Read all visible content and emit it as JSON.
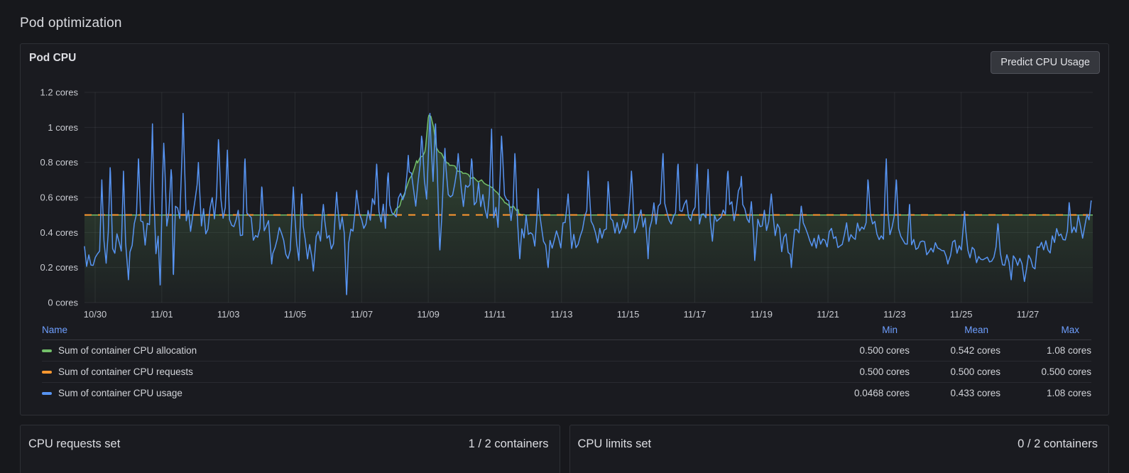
{
  "page": {
    "title": "Pod optimization"
  },
  "pod_cpu_panel": {
    "title": "Pod CPU",
    "predict_button_label": "Predict CPU Usage"
  },
  "chart_data": {
    "type": "line",
    "title": "Pod CPU",
    "unit": "cores",
    "grid": true,
    "legend_position": "bottom-table",
    "ylim": [
      0,
      1.2
    ],
    "x_domain_days": [
      -0.32,
      29.95
    ],
    "y_ticks": [
      {
        "value": 0,
        "label": "0 cores"
      },
      {
        "value": 0.2,
        "label": "0.2 cores"
      },
      {
        "value": 0.4,
        "label": "0.4 cores"
      },
      {
        "value": 0.6,
        "label": "0.6 cores"
      },
      {
        "value": 0.8,
        "label": "0.8 cores"
      },
      {
        "value": 1,
        "label": "1 cores"
      },
      {
        "value": 1.2,
        "label": "1.2 cores"
      }
    ],
    "x_ticks": [
      {
        "day": 0,
        "label": "10/30"
      },
      {
        "day": 2,
        "label": "11/01"
      },
      {
        "day": 4,
        "label": "11/03"
      },
      {
        "day": 6,
        "label": "11/05"
      },
      {
        "day": 8,
        "label": "11/07"
      },
      {
        "day": 10,
        "label": "11/09"
      },
      {
        "day": 12,
        "label": "11/11"
      },
      {
        "day": 14,
        "label": "11/13"
      },
      {
        "day": 16,
        "label": "11/15"
      },
      {
        "day": 18,
        "label": "11/17"
      },
      {
        "day": 20,
        "label": "11/19"
      },
      {
        "day": 22,
        "label": "11/21"
      },
      {
        "day": 24,
        "label": "11/23"
      },
      {
        "day": 26,
        "label": "11/25"
      },
      {
        "day": 28,
        "label": "11/27"
      }
    ],
    "legend_columns": [
      "Name",
      "Min",
      "Mean",
      "Max"
    ],
    "series": [
      {
        "name": "Sum of container CPU allocation",
        "color": "#73BF69",
        "style": "area",
        "base": 0.5,
        "noise": 0.012,
        "seed": 7,
        "points": [
          [
            -0.32,
            0.5
          ],
          [
            8.9,
            0.5
          ],
          [
            9.15,
            0.56
          ],
          [
            9.4,
            0.68
          ],
          [
            9.65,
            0.8
          ],
          [
            9.9,
            0.86
          ],
          [
            10.02,
            1.08
          ],
          [
            10.12,
            1.04
          ],
          [
            10.25,
            0.88
          ],
          [
            10.6,
            0.8
          ],
          [
            11.0,
            0.74
          ],
          [
            11.5,
            0.7
          ],
          [
            11.9,
            0.66
          ],
          [
            12.3,
            0.58
          ],
          [
            12.7,
            0.52
          ],
          [
            12.9,
            0.5
          ],
          [
            29.95,
            0.5
          ]
        ],
        "stats": {
          "min": "0.500 cores",
          "mean": "0.542 cores",
          "max": "1.08 cores"
        }
      },
      {
        "name": "Sum of container CPU requests",
        "color": "#FF9830",
        "style": "dashed",
        "value": 0.5,
        "stats": {
          "min": "0.500 cores",
          "mean": "0.500 cores",
          "max": "0.500 cores"
        }
      },
      {
        "name": "Sum of container CPU usage",
        "color": "#5794F2",
        "style": "line",
        "seed": 1337,
        "step": 0.065,
        "clamp": [
          0.045,
          1.082
        ],
        "envelope": [
          [
            -0.32,
            0.32
          ],
          [
            0.5,
            0.3
          ],
          [
            1.2,
            0.35
          ],
          [
            2.2,
            0.42
          ],
          [
            3.2,
            0.5
          ],
          [
            4,
            0.48
          ],
          [
            4.8,
            0.42
          ],
          [
            5.6,
            0.35
          ],
          [
            6.5,
            0.3
          ],
          [
            7.2,
            0.38
          ],
          [
            7.9,
            0.45
          ],
          [
            8.8,
            0.52
          ],
          [
            9.5,
            0.6
          ],
          [
            10.1,
            0.68
          ],
          [
            10.8,
            0.64
          ],
          [
            11.6,
            0.6
          ],
          [
            12.3,
            0.52
          ],
          [
            13,
            0.42
          ],
          [
            13.8,
            0.36
          ],
          [
            14.6,
            0.4
          ],
          [
            15.3,
            0.38
          ],
          [
            16.2,
            0.45
          ],
          [
            17,
            0.52
          ],
          [
            17.8,
            0.5
          ],
          [
            18.6,
            0.48
          ],
          [
            19.3,
            0.5
          ],
          [
            20,
            0.44
          ],
          [
            20.8,
            0.38
          ],
          [
            21.6,
            0.34
          ],
          [
            22.4,
            0.38
          ],
          [
            23.2,
            0.4
          ],
          [
            24,
            0.38
          ],
          [
            24.6,
            0.33
          ],
          [
            25.4,
            0.3
          ],
          [
            26.2,
            0.28
          ],
          [
            26.8,
            0.24
          ],
          [
            27.6,
            0.22
          ],
          [
            28.2,
            0.24
          ],
          [
            28.8,
            0.33
          ],
          [
            29.4,
            0.42
          ],
          [
            29.95,
            0.46
          ]
        ],
        "amplitude": [
          [
            -0.32,
            0.09
          ],
          [
            2,
            0.13
          ],
          [
            4,
            0.12
          ],
          [
            6,
            0.09
          ],
          [
            8,
            0.1
          ],
          [
            10,
            0.13
          ],
          [
            12,
            0.12
          ],
          [
            14,
            0.09
          ],
          [
            16,
            0.11
          ],
          [
            18,
            0.12
          ],
          [
            20,
            0.09
          ],
          [
            22,
            0.08
          ],
          [
            24,
            0.08
          ],
          [
            26,
            0.06
          ],
          [
            27.5,
            0.05
          ],
          [
            29,
            0.09
          ],
          [
            29.95,
            0.08
          ]
        ],
        "spikes": [
          [
            0.2,
            0.7
          ],
          [
            0.45,
            0.77
          ],
          [
            0.85,
            0.75
          ],
          [
            1.3,
            0.82
          ],
          [
            1.72,
            1.02
          ],
          [
            2.06,
            0.91
          ],
          [
            2.3,
            0.86
          ],
          [
            2.64,
            1.08
          ],
          [
            3.1,
            0.8
          ],
          [
            3.7,
            0.93
          ],
          [
            3.97,
            0.87
          ],
          [
            4.5,
            0.82
          ],
          [
            5,
            0.66
          ],
          [
            5.95,
            0.66
          ],
          [
            6.2,
            0.62
          ],
          [
            6.85,
            0.56
          ],
          [
            7.25,
            0.63
          ],
          [
            7.85,
            0.64
          ],
          [
            8.45,
            0.79
          ],
          [
            8.8,
            0.74
          ],
          [
            9.4,
            0.84
          ],
          [
            9.8,
            0.95
          ],
          [
            10.05,
            1.08
          ],
          [
            10.22,
            1.02
          ],
          [
            10.5,
            0.88
          ],
          [
            10.9,
            0.85
          ],
          [
            11.3,
            0.82
          ],
          [
            11.9,
            0.99
          ],
          [
            12.2,
            0.95
          ],
          [
            12.6,
            0.85
          ],
          [
            13.3,
            0.65
          ],
          [
            14.2,
            0.62
          ],
          [
            14.8,
            0.75
          ],
          [
            15.4,
            0.69
          ],
          [
            16.1,
            0.75
          ],
          [
            17.05,
            0.85
          ],
          [
            17.5,
            0.79
          ],
          [
            18.07,
            0.79
          ],
          [
            18.4,
            0.76
          ],
          [
            19,
            0.75
          ],
          [
            19.4,
            0.72
          ],
          [
            20.3,
            0.62
          ],
          [
            21.2,
            0.55
          ],
          [
            23.2,
            0.7
          ],
          [
            23.75,
            0.82
          ],
          [
            24.05,
            0.7
          ],
          [
            24.45,
            0.56
          ],
          [
            26.1,
            0.52
          ],
          [
            27.1,
            0.45
          ],
          [
            29.24,
            0.57
          ],
          [
            29.9,
            0.58
          ]
        ],
        "dips": [
          [
            1,
            0.13
          ],
          [
            1.95,
            0.1
          ],
          [
            2.35,
            0.16
          ],
          [
            5.3,
            0.22
          ],
          [
            6.55,
            0.18
          ],
          [
            7.55,
            0.042
          ],
          [
            10.35,
            0.3
          ],
          [
            12.75,
            0.25
          ],
          [
            13.6,
            0.2
          ],
          [
            16.6,
            0.25
          ],
          [
            19.8,
            0.24
          ],
          [
            20.9,
            0.2
          ],
          [
            25.6,
            0.22
          ],
          [
            27.5,
            0.13
          ],
          [
            27.9,
            0.12
          ]
        ],
        "stats": {
          "min": "0.0468 cores",
          "mean": "0.433 cores",
          "max": "1.08 cores"
        }
      }
    ]
  },
  "cpu_requests_panel": {
    "title": "CPU requests set",
    "value": "1 / 2 containers"
  },
  "cpu_limits_panel": {
    "title": "CPU limits set",
    "value": "0 / 2 containers"
  },
  "colors": {
    "accent_link": "#6E9FFF",
    "green": "#73BF69",
    "orange": "#FF9830",
    "blue": "#5794F2",
    "grid": "rgba(240,250,255,0.07)"
  }
}
